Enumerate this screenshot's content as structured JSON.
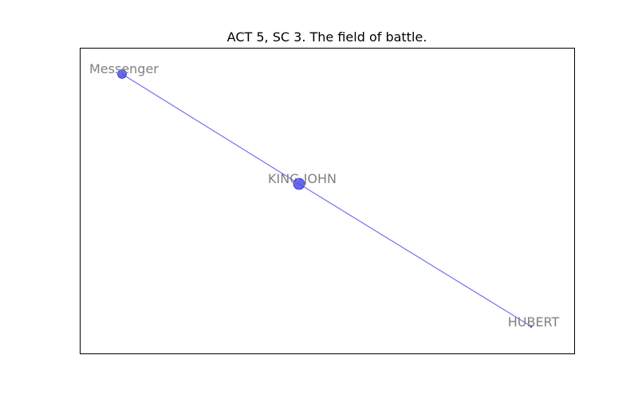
{
  "title": "ACT 5, SC 3. The field of battle.",
  "colors": {
    "node_fill": "#4b4bf0",
    "node_stroke": "#2b2bd9",
    "edge": "#6f6ff5",
    "label": "#808080",
    "frame": "#000000"
  },
  "nodes": [
    {
      "id": "messenger",
      "label": "Messenger"
    },
    {
      "id": "king-john",
      "label": "KING JOHN"
    },
    {
      "id": "hubert",
      "label": "HUBERT"
    }
  ],
  "edges": [
    {
      "source": "messenger",
      "target": "king-john"
    },
    {
      "source": "king-john",
      "target": "hubert"
    }
  ]
}
